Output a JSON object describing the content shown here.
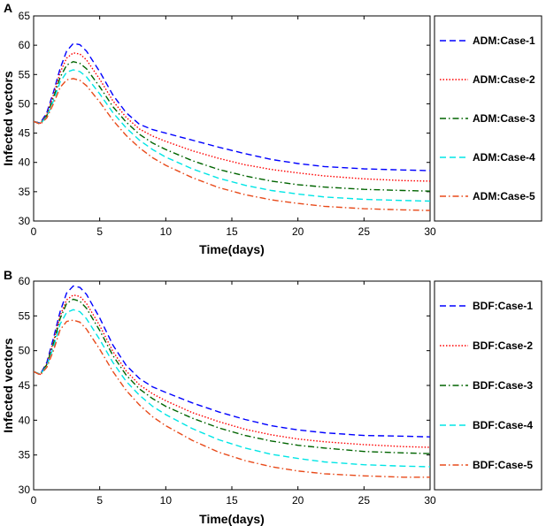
{
  "chart_data": [
    {
      "type": "line",
      "panel_label": "A",
      "xlabel": "Time(days)",
      "ylabel": "Infected vectors",
      "xlim": [
        0,
        30
      ],
      "ylim": [
        30,
        65
      ],
      "xticks": [
        0,
        5,
        10,
        15,
        20,
        25,
        30
      ],
      "yticks": [
        30,
        35,
        40,
        45,
        50,
        55,
        60,
        65
      ],
      "legend_position": "right",
      "series": [
        {
          "name": "ADM:Case-1",
          "color": "#0000ff",
          "style": "dashed",
          "x": [
            0,
            0.5,
            1,
            1.5,
            2,
            2.5,
            3,
            3.5,
            4,
            5,
            6,
            7,
            8,
            9,
            10,
            12,
            14,
            16,
            18,
            20,
            22,
            25,
            28,
            30
          ],
          "y": [
            47,
            46.7,
            48.5,
            52,
            56,
            59,
            60.3,
            60.1,
            59,
            55.5,
            51.5,
            48.5,
            46.5,
            45.6,
            45,
            43.8,
            42.6,
            41.5,
            40.5,
            39.8,
            39.3,
            38.9,
            38.7,
            38.6
          ]
        },
        {
          "name": "ADM:Case-2",
          "color": "#ff0000",
          "style": "dotted",
          "x": [
            0,
            0.5,
            1,
            1.5,
            2,
            2.5,
            3,
            3.5,
            4,
            5,
            6,
            7,
            8,
            9,
            10,
            12,
            14,
            16,
            18,
            20,
            22,
            25,
            28,
            30
          ],
          "y": [
            47,
            46.7,
            48.2,
            51.5,
            55.3,
            57.8,
            58.7,
            58.5,
            57.5,
            54.2,
            50.5,
            47.7,
            45.7,
            44.5,
            43.6,
            42,
            40.7,
            39.6,
            38.8,
            38.2,
            37.7,
            37.2,
            36.9,
            36.8
          ]
        },
        {
          "name": "ADM:Case-3",
          "color": "#006400",
          "style": "dashdot",
          "x": [
            0,
            0.5,
            1,
            1.5,
            2,
            2.5,
            3,
            3.5,
            4,
            5,
            6,
            7,
            8,
            9,
            10,
            12,
            14,
            16,
            18,
            20,
            22,
            25,
            28,
            30
          ],
          "y": [
            47,
            46.6,
            48,
            51,
            54.5,
            56.6,
            57.2,
            56.9,
            56,
            52.9,
            49.5,
            46.9,
            44.8,
            43.3,
            42.2,
            40.3,
            38.8,
            37.7,
            36.8,
            36.2,
            35.8,
            35.4,
            35.2,
            35.1
          ]
        },
        {
          "name": "ADM:Case-4",
          "color": "#00e5e5",
          "style": "dashed",
          "x": [
            0,
            0.5,
            1,
            1.5,
            2,
            2.5,
            3,
            3.5,
            4,
            5,
            6,
            7,
            8,
            9,
            10,
            12,
            14,
            16,
            18,
            20,
            22,
            25,
            28,
            30
          ],
          "y": [
            47,
            46.6,
            47.8,
            50.5,
            53.7,
            55.4,
            55.8,
            55.5,
            54.6,
            51.7,
            48.5,
            45.9,
            43.8,
            42.2,
            40.9,
            38.9,
            37.3,
            36.1,
            35.2,
            34.6,
            34.1,
            33.7,
            33.5,
            33.4
          ]
        },
        {
          "name": "ADM:Case-5",
          "color": "#e84a1a",
          "style": "dashdot",
          "x": [
            0,
            0.5,
            1,
            1.5,
            2,
            2.5,
            3,
            3.5,
            4,
            5,
            6,
            7,
            8,
            9,
            10,
            12,
            14,
            16,
            18,
            20,
            22,
            25,
            28,
            30
          ],
          "y": [
            47,
            46.5,
            47.6,
            50,
            52.8,
            54.1,
            54.3,
            54,
            53.1,
            50.3,
            47.2,
            44.6,
            42.5,
            40.8,
            39.5,
            37.4,
            35.7,
            34.5,
            33.6,
            33,
            32.5,
            32.1,
            31.9,
            31.8
          ]
        }
      ]
    },
    {
      "type": "line",
      "panel_label": "B",
      "xlabel": "Time(days)",
      "ylabel": "Infected vectors",
      "xlim": [
        0,
        30
      ],
      "ylim": [
        30,
        60
      ],
      "xticks": [
        0,
        5,
        10,
        15,
        20,
        25,
        30
      ],
      "yticks": [
        30,
        35,
        40,
        45,
        50,
        55,
        60
      ],
      "legend_position": "right",
      "series": [
        {
          "name": "BDF:Case-1",
          "color": "#0000ff",
          "style": "dashed",
          "x": [
            0,
            0.5,
            1,
            1.5,
            2,
            2.5,
            3,
            3.5,
            4,
            5,
            6,
            7,
            8,
            9,
            10,
            12,
            14,
            16,
            18,
            20,
            22,
            25,
            28,
            30
          ],
          "y": [
            47,
            46.6,
            48.3,
            51.8,
            55.6,
            58.3,
            59.3,
            59.1,
            58.1,
            54.7,
            50.8,
            47.9,
            46,
            44.8,
            44,
            42.5,
            41.2,
            40.1,
            39.2,
            38.6,
            38.2,
            37.8,
            37.7,
            37.6
          ]
        },
        {
          "name": "BDF:Case-2",
          "color": "#ff0000",
          "style": "dotted",
          "x": [
            0,
            0.5,
            1,
            1.5,
            2,
            2.5,
            3,
            3.5,
            4,
            5,
            6,
            7,
            8,
            9,
            10,
            12,
            14,
            16,
            18,
            20,
            22,
            25,
            28,
            30
          ],
          "y": [
            47,
            46.6,
            48.1,
            51.3,
            55,
            57.3,
            58,
            57.8,
            56.8,
            53.6,
            49.9,
            47.1,
            45.1,
            43.8,
            42.8,
            41.1,
            39.8,
            38.7,
            37.9,
            37.3,
            36.9,
            36.5,
            36.2,
            36.1
          ]
        },
        {
          "name": "BDF:Case-3",
          "color": "#006400",
          "style": "dashdot",
          "x": [
            0,
            0.5,
            1,
            1.5,
            2,
            2.5,
            3,
            3.5,
            4,
            5,
            6,
            7,
            8,
            9,
            10,
            12,
            14,
            16,
            18,
            20,
            22,
            25,
            28,
            30
          ],
          "y": [
            47,
            46.6,
            48,
            51,
            54.6,
            56.8,
            57.4,
            57.1,
            56.1,
            52.9,
            49.3,
            46.5,
            44.5,
            43.1,
            42,
            40.3,
            38.9,
            37.8,
            37,
            36.4,
            36,
            35.5,
            35.3,
            35.2
          ]
        },
        {
          "name": "BDF:Case-4",
          "color": "#00e5e5",
          "style": "dashed",
          "x": [
            0,
            0.5,
            1,
            1.5,
            2,
            2.5,
            3,
            3.5,
            4,
            5,
            6,
            7,
            8,
            9,
            10,
            12,
            14,
            16,
            18,
            20,
            22,
            25,
            28,
            30
          ],
          "y": [
            47,
            46.6,
            47.8,
            50.5,
            53.8,
            55.5,
            55.9,
            55.6,
            54.6,
            51.6,
            48.3,
            45.6,
            43.6,
            42,
            40.8,
            38.8,
            37.2,
            36,
            35.1,
            34.5,
            34,
            33.6,
            33.4,
            33.3
          ]
        },
        {
          "name": "BDF:Case-5",
          "color": "#e84a1a",
          "style": "dashdot",
          "x": [
            0,
            0.5,
            1,
            1.5,
            2,
            2.5,
            3,
            3.5,
            4,
            5,
            6,
            7,
            8,
            9,
            10,
            12,
            14,
            16,
            18,
            20,
            22,
            25,
            28,
            30
          ],
          "y": [
            47,
            46.5,
            47.6,
            50,
            53,
            54.2,
            54.4,
            54.1,
            53.1,
            50.2,
            47,
            44.3,
            42.2,
            40.5,
            39.2,
            37.1,
            35.4,
            34.2,
            33.3,
            32.7,
            32.3,
            32,
            31.8,
            31.8
          ]
        }
      ]
    }
  ]
}
